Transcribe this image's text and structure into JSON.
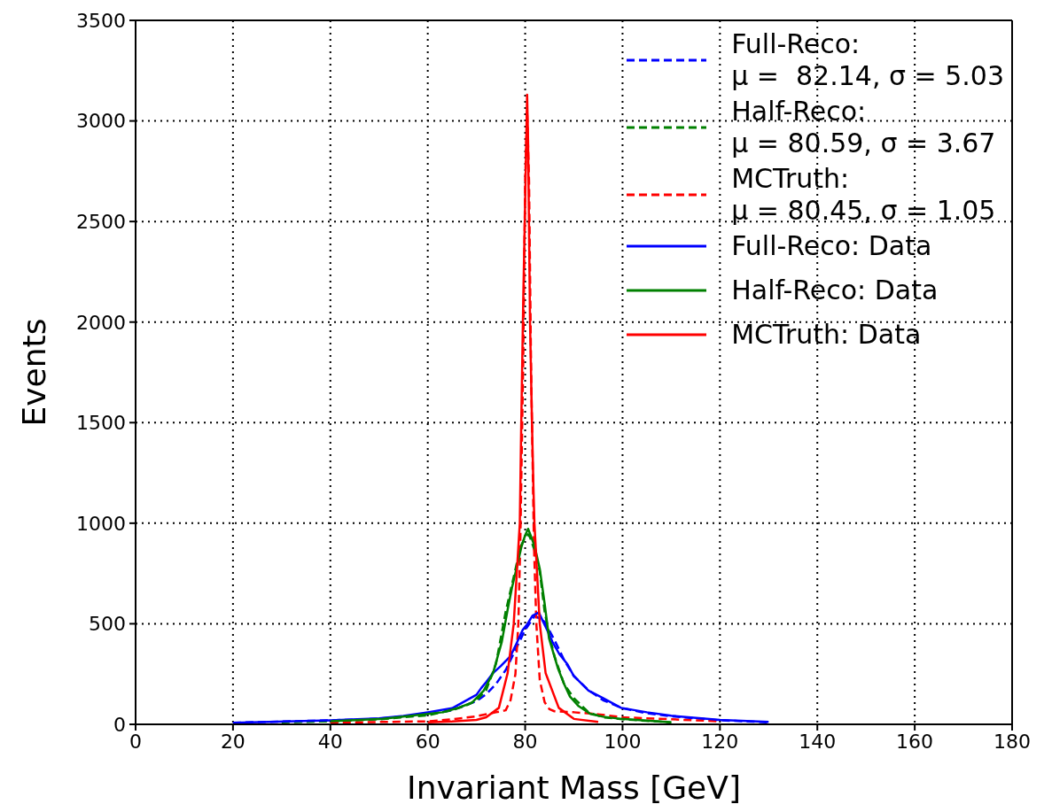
{
  "chart_data": {
    "type": "line",
    "xlabel": "Invariant Mass [GeV]",
    "ylabel": "Events",
    "xlim": [
      0,
      180
    ],
    "xticks": [
      0,
      20,
      40,
      60,
      80,
      100,
      120,
      140,
      160,
      180
    ],
    "ylim": [
      0,
      3500
    ],
    "yticks": [
      0,
      500,
      1000,
      1500,
      2000,
      2500,
      3000,
      3500
    ],
    "grid": true,
    "legend": "top right",
    "marker": "none",
    "series": [
      {
        "name": "Full-Reco:\nμ =  82.14, σ = 5.03",
        "color": "#0000ff",
        "line_style": "dashed",
        "x": [
          20,
          40,
          50,
          60,
          65,
          70,
          72,
          74,
          76,
          78,
          80,
          82,
          84,
          86,
          88,
          90,
          93,
          96,
          100,
          105,
          110,
          120,
          130
        ],
        "values": [
          8,
          20,
          28,
          50,
          70,
          115,
          150,
          200,
          270,
          370,
          470,
          540,
          510,
          420,
          320,
          240,
          170,
          120,
          80,
          55,
          40,
          20,
          10
        ]
      },
      {
        "name": "Half-Reco:\nμ = 80.59, σ = 3.67",
        "color": "#008000",
        "line_style": "dashed",
        "x": [
          30,
          40,
          50,
          60,
          65,
          68,
          70,
          72,
          74,
          76,
          78,
          79,
          80,
          80.6,
          81,
          82,
          83,
          84,
          85,
          86,
          88,
          90,
          93,
          96,
          100,
          110
        ],
        "values": [
          10,
          15,
          25,
          45,
          70,
          95,
          120,
          170,
          300,
          560,
          770,
          880,
          930,
          945,
          930,
          860,
          760,
          560,
          440,
          340,
          200,
          130,
          60,
          35,
          25,
          10
        ]
      },
      {
        "name": "MCTruth:\nμ = 80.45, σ = 1.05",
        "color": "#ff0000",
        "line_style": "dashed",
        "x": [
          40,
          60,
          65,
          70,
          74,
          76,
          77,
          78,
          78.6,
          79,
          79.6,
          80,
          80.4,
          80.8,
          81.2,
          81.8,
          82.3,
          83,
          84,
          85,
          86,
          90,
          95,
          100,
          120
        ],
        "values": [
          8,
          15,
          25,
          40,
          60,
          70,
          120,
          250,
          500,
          900,
          1800,
          2700,
          3050,
          2700,
          1800,
          900,
          500,
          220,
          110,
          75,
          65,
          60,
          50,
          35,
          15
        ]
      },
      {
        "name": "Full-Reco: Data",
        "color": "#0000ff",
        "line_style": "solid",
        "x": [
          20,
          40,
          50,
          55,
          60,
          65,
          70,
          71,
          72,
          73.4,
          75,
          77,
          78,
          79.5,
          80.5,
          81.5,
          82.8,
          83.5,
          84.5,
          85.6,
          87,
          88.7,
          90,
          93,
          96,
          99.7,
          105,
          110,
          120,
          130
        ],
        "values": [
          8,
          20,
          30,
          42,
          60,
          80,
          147,
          181,
          210,
          255,
          290,
          340,
          390,
          470,
          500,
          540,
          557,
          520,
          470,
          410,
          350,
          298,
          240,
          168,
          130,
          82,
          60,
          43,
          22,
          12
        ]
      },
      {
        "name": "Half-Reco: Data",
        "color": "#008000",
        "line_style": "solid",
        "x": [
          40,
          50.8,
          63,
          66,
          69.1,
          71.5,
          73.4,
          75.2,
          76.4,
          77.3,
          78.2,
          79.2,
          80,
          80.6,
          81.2,
          82,
          83,
          84,
          84.9,
          86.7,
          88,
          89.2,
          91,
          93.4,
          96,
          99.7,
          110
        ],
        "values": [
          15,
          27,
          60,
          80,
          108,
          168,
          255,
          410,
          570,
          680,
          773,
          880,
          940,
          972,
          935,
          880,
          773,
          600,
          428,
          281,
          200,
          138,
          90,
          52,
          38,
          27,
          10
        ]
      },
      {
        "name": "MCTruth: Data",
        "color": "#ff0000",
        "line_style": "solid",
        "x": [
          60,
          65,
          70,
          72,
          74.6,
          76.4,
          77.65,
          78.9,
          79.2,
          79.6,
          80,
          80.4,
          80.6,
          81,
          81.4,
          81.7,
          81.9,
          83,
          84.2,
          86.9,
          90,
          95
        ],
        "values": [
          10,
          14,
          22,
          35,
          82,
          255,
          500,
          1000,
          1500,
          2100,
          2600,
          3130,
          2900,
          2000,
          1500,
          1175,
          1000,
          500,
          255,
          82,
          27,
          12
        ]
      }
    ]
  }
}
